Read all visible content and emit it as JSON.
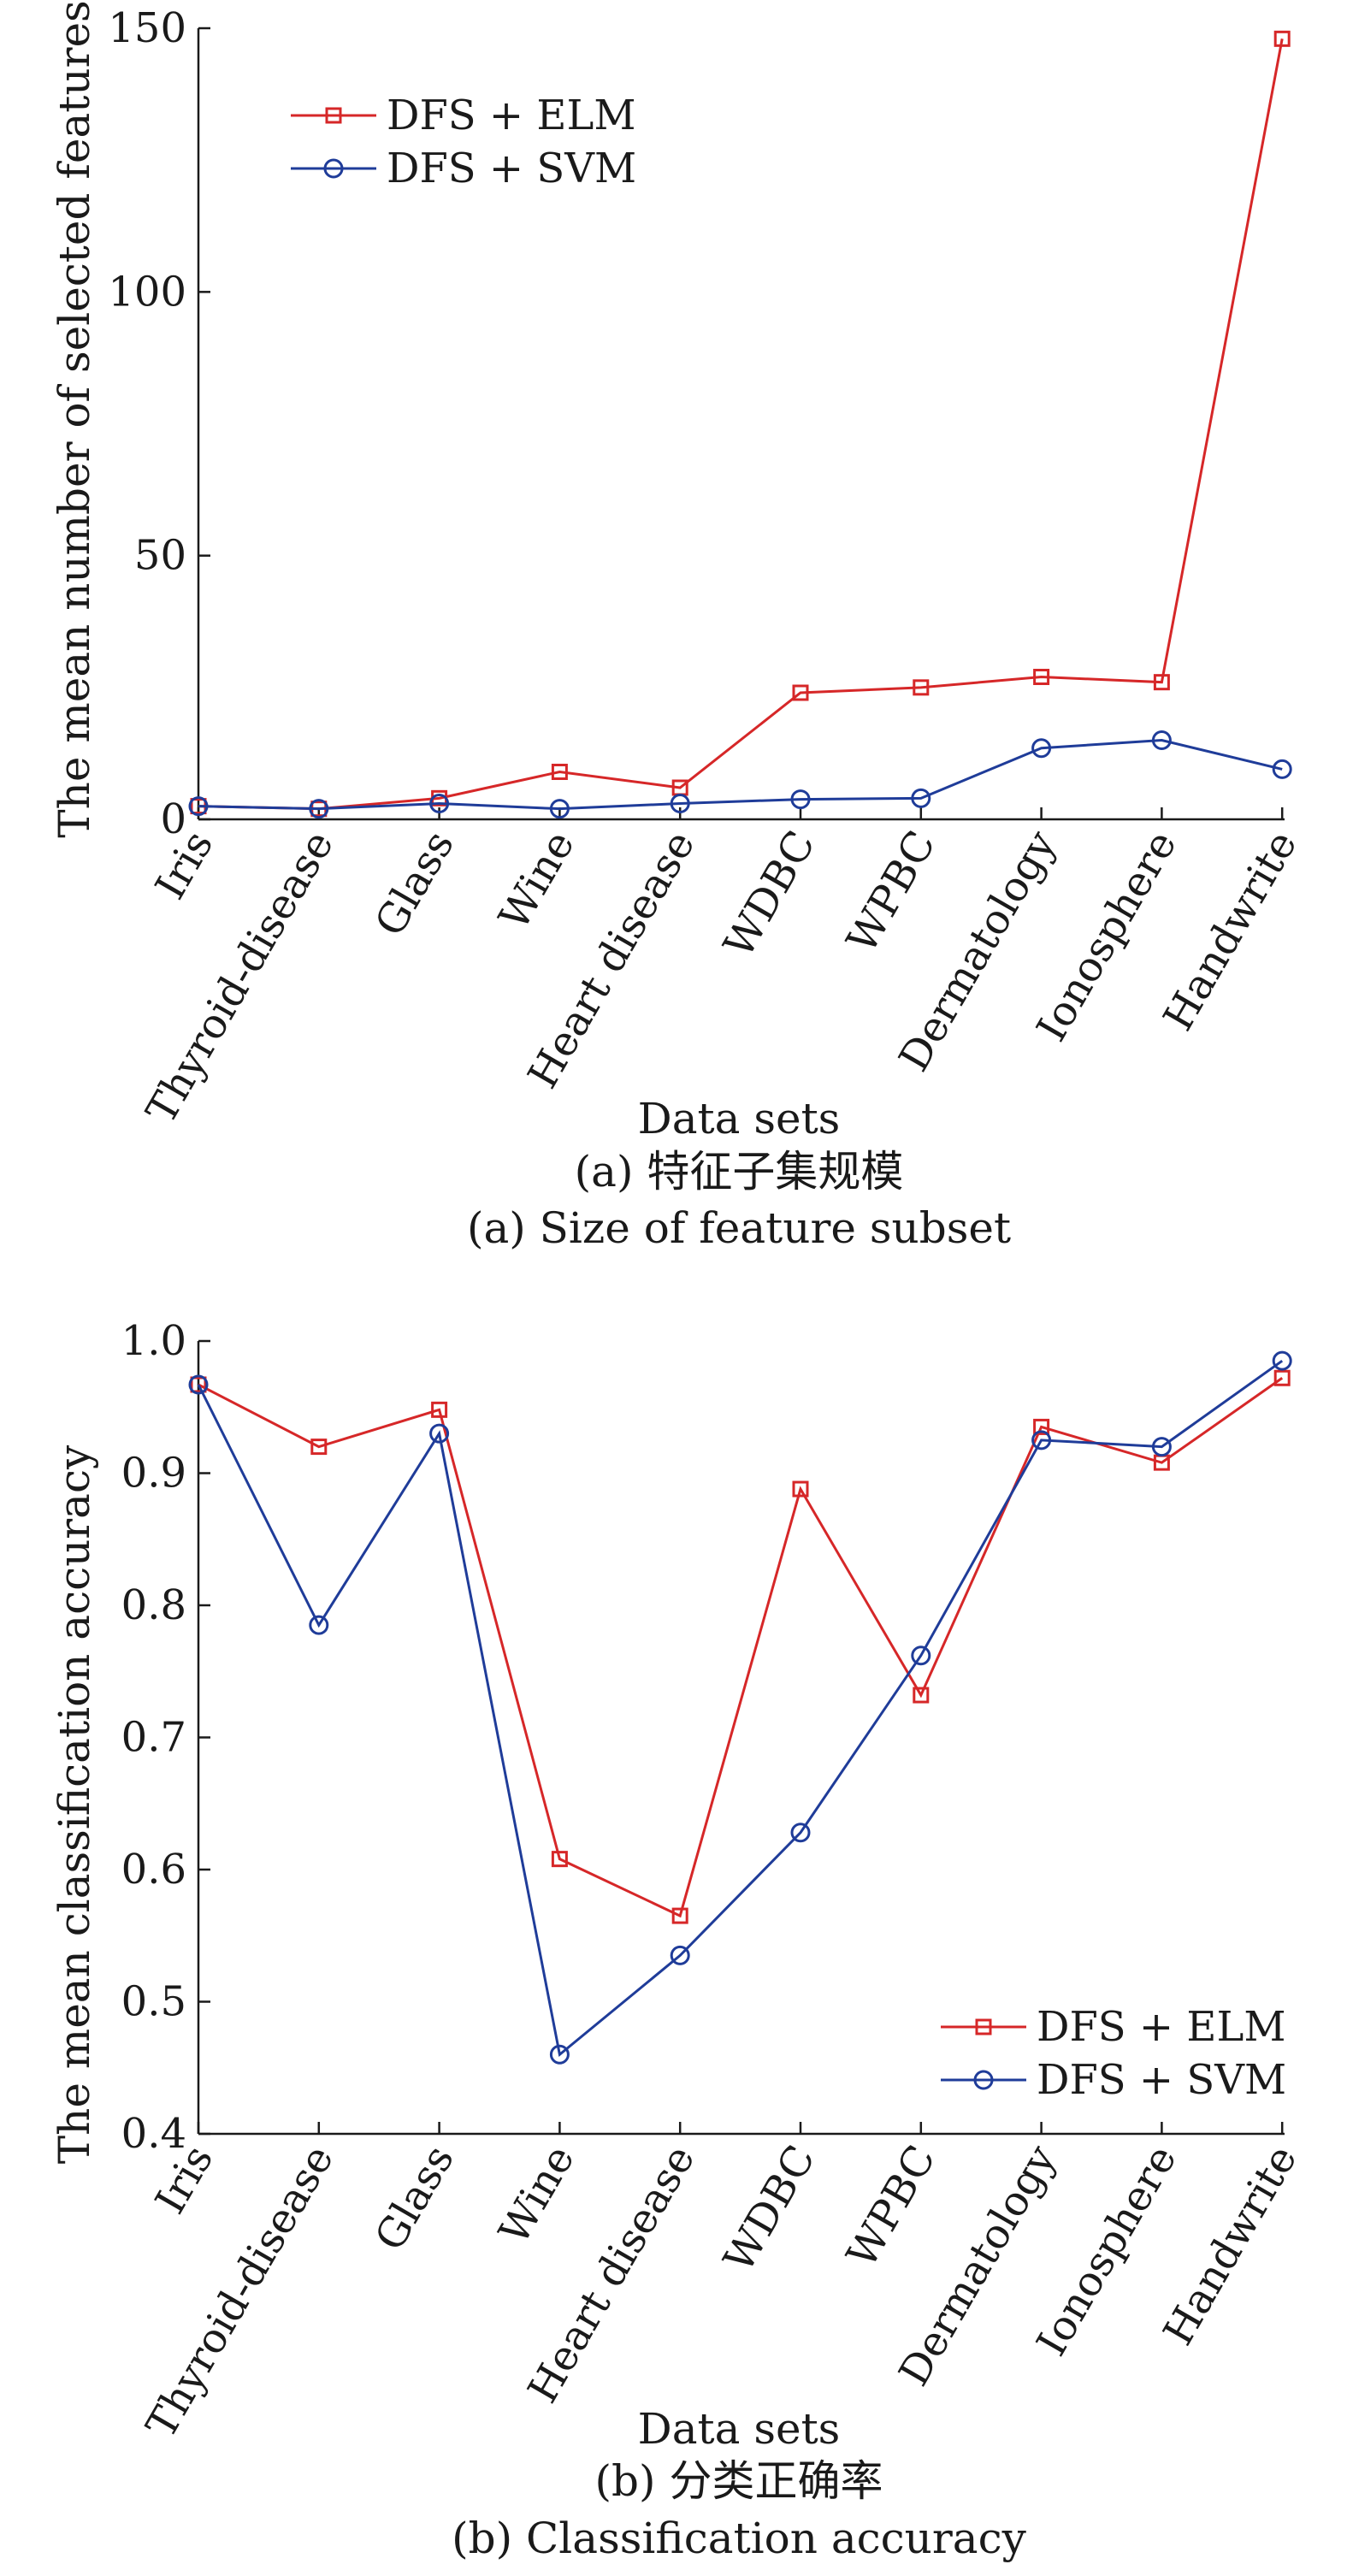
{
  "colors": {
    "elm": "#d62728",
    "svm": "#1f3c99",
    "axis": "#1a1a1a"
  },
  "chart_data": [
    {
      "type": "line",
      "categories": [
        "Iris",
        "Thyroid-disease",
        "Glass",
        "Wine",
        "Heart disease",
        "WDBC",
        "WPBC",
        "Dermatology",
        "Ionosphere",
        "Handwrite"
      ],
      "series": [
        {
          "name": "DFS + ELM",
          "marker": "square",
          "color": "#d62728",
          "values": [
            2.5,
            2,
            4,
            9,
            6,
            24,
            25,
            27,
            26,
            148
          ]
        },
        {
          "name": "DFS + SVM",
          "marker": "circle",
          "color": "#1f3c99",
          "values": [
            2.5,
            2,
            3,
            2,
            3,
            3.8,
            4,
            13.5,
            15,
            9.5
          ]
        }
      ],
      "xlabel": "Data sets",
      "ylabel": "The mean number of selected features",
      "ylim": [
        0,
        150
      ],
      "yticks": [
        "0",
        "50",
        "100",
        "150"
      ],
      "yticks_values": [
        0,
        50,
        100,
        150
      ],
      "caption_cn": "(a) 特征子集规模",
      "caption_en": "(a) Size of feature subset",
      "legend": "top-left",
      "grid": false
    },
    {
      "type": "line",
      "categories": [
        "Iris",
        "Thyroid-disease",
        "Glass",
        "Wine",
        "Heart disease",
        "WDBC",
        "WPBC",
        "Dermatology",
        "Ionosphere",
        "Handwrite"
      ],
      "series": [
        {
          "name": "DFS + ELM",
          "marker": "square",
          "color": "#d62728",
          "values": [
            0.967,
            0.92,
            0.948,
            0.608,
            0.565,
            0.888,
            0.732,
            0.935,
            0.908,
            0.972
          ]
        },
        {
          "name": "DFS + SVM",
          "marker": "circle",
          "color": "#1f3c99",
          "values": [
            0.967,
            0.785,
            0.93,
            0.46,
            0.535,
            0.628,
            0.762,
            0.925,
            0.92,
            0.985
          ]
        }
      ],
      "xlabel": "Data sets",
      "ylabel": "The mean classification accuracy",
      "ylim": [
        0.4,
        1.0
      ],
      "yticks": [
        "0.4",
        "0.5",
        "0.6",
        "0.7",
        "0.8",
        "0.9",
        "1.0"
      ],
      "yticks_values": [
        0.4,
        0.5,
        0.6,
        0.7,
        0.8,
        0.9,
        1.0
      ],
      "caption_cn": "(b) 分类正确率",
      "caption_en": "(b) Classification accuracy",
      "legend": "bottom-right",
      "grid": false
    }
  ]
}
